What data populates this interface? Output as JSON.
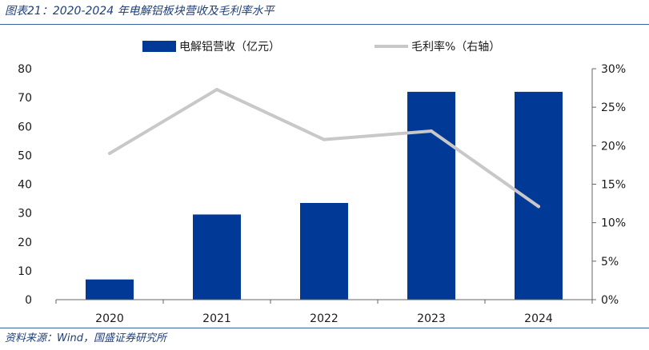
{
  "figure_title": "图表21：2020-2024 年电解铝板块营收及毛利率水平",
  "source_note": "资料来源：Wind，国盛证券研究所",
  "colors": {
    "bar": "#003a96",
    "line": "#c8c8c8",
    "heading": "#1f3f7a"
  },
  "chart_data": {
    "type": "bar",
    "title": "",
    "categories": [
      "2020",
      "2021",
      "2022",
      "2023",
      "2024"
    ],
    "xlabel": "",
    "ylabel": "",
    "ylim": [
      0,
      80
    ],
    "yticks": [
      0,
      10,
      20,
      30,
      40,
      50,
      60,
      70,
      80
    ],
    "y2lim": [
      0,
      30
    ],
    "y2ticks": [
      "0%",
      "5%",
      "10%",
      "15%",
      "20%",
      "25%",
      "30%"
    ],
    "grid": false,
    "legend_position": "top",
    "series": [
      {
        "name": "电解铝营收（亿元）",
        "type": "bar",
        "axis": "left",
        "values": [
          7,
          29.5,
          33.5,
          72,
          72
        ]
      },
      {
        "name": "毛利率%（右轴）",
        "type": "line",
        "axis": "right",
        "values": [
          19,
          27.3,
          20.8,
          21.9,
          12.1
        ]
      }
    ]
  }
}
